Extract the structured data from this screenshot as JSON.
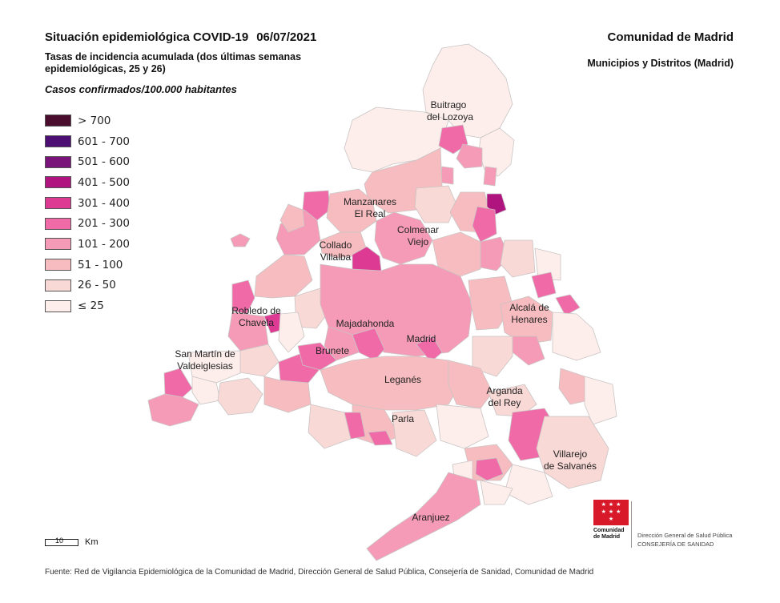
{
  "header": {
    "title": "Situación epidemiológica COVID-19",
    "date": "06/07/2021",
    "subtitle": "Tasas de incidencia acumulada (dos últimas semanas epidemiológicas, 25 y 26)",
    "units": "Casos confirmados/100.000 habitantes",
    "region": "Comunidad de Madrid",
    "region_sub": "Municipios y Distritos (Madrid)"
  },
  "legend": [
    {
      "label": "> 700",
      "color": "#4a0d2e"
    },
    {
      "label": "601 - 700",
      "color": "#4d0f73"
    },
    {
      "label": "501 - 600",
      "color": "#7a137a"
    },
    {
      "label": "401 - 500",
      "color": "#b0157f"
    },
    {
      "label": "301 - 400",
      "color": "#dd3a94"
    },
    {
      "label": "201 - 300",
      "color": "#f06aa8"
    },
    {
      "label": "101 - 200",
      "color": "#f59bb8"
    },
    {
      "label": "51 - 100",
      "color": "#f7bcbf"
    },
    {
      "label": "26 - 50",
      "color": "#f9d9d6"
    },
    {
      "label": "≤ 25",
      "color": "#fdeeeb"
    }
  ],
  "places": [
    {
      "line1": "Buitrago",
      "line2": "del Lozoya"
    },
    {
      "line1": "Manzanares",
      "line2": "El Real"
    },
    {
      "line1": "Colmenar",
      "line2": "Viejo"
    },
    {
      "line1": "Collado",
      "line2": "Villalba"
    },
    {
      "line1": "Alcalá de",
      "line2": "Henares"
    },
    {
      "line1": "Robledo de",
      "line2": "Chavela"
    },
    {
      "line1": "Majadahonda",
      "line2": ""
    },
    {
      "line1": "San Martín de",
      "line2": "Valdeiglesias"
    },
    {
      "line1": "Brunete",
      "line2": ""
    },
    {
      "line1": "Madrid",
      "line2": ""
    },
    {
      "line1": "Leganés",
      "line2": ""
    },
    {
      "line1": "Arganda",
      "line2": "del Rey"
    },
    {
      "line1": "Parla",
      "line2": ""
    },
    {
      "line1": "Villarejo",
      "line2": "de Salvanés"
    },
    {
      "line1": "Aranjuez",
      "line2": ""
    }
  ],
  "scale": {
    "number": "10",
    "unit": "Km"
  },
  "logo": {
    "line1": "Comunidad",
    "line2": "de Madrid"
  },
  "department": {
    "line1": "Dirección General de Salud Pública",
    "line2": "CONSEJERÍA DE SANIDAD"
  },
  "source": "Fuente: Red de Vigilancia Epidemiológica de la Comunidad de Madrid, Dirección General de Salud Pública, Consejería de Sanidad, Comunidad de Madrid"
}
